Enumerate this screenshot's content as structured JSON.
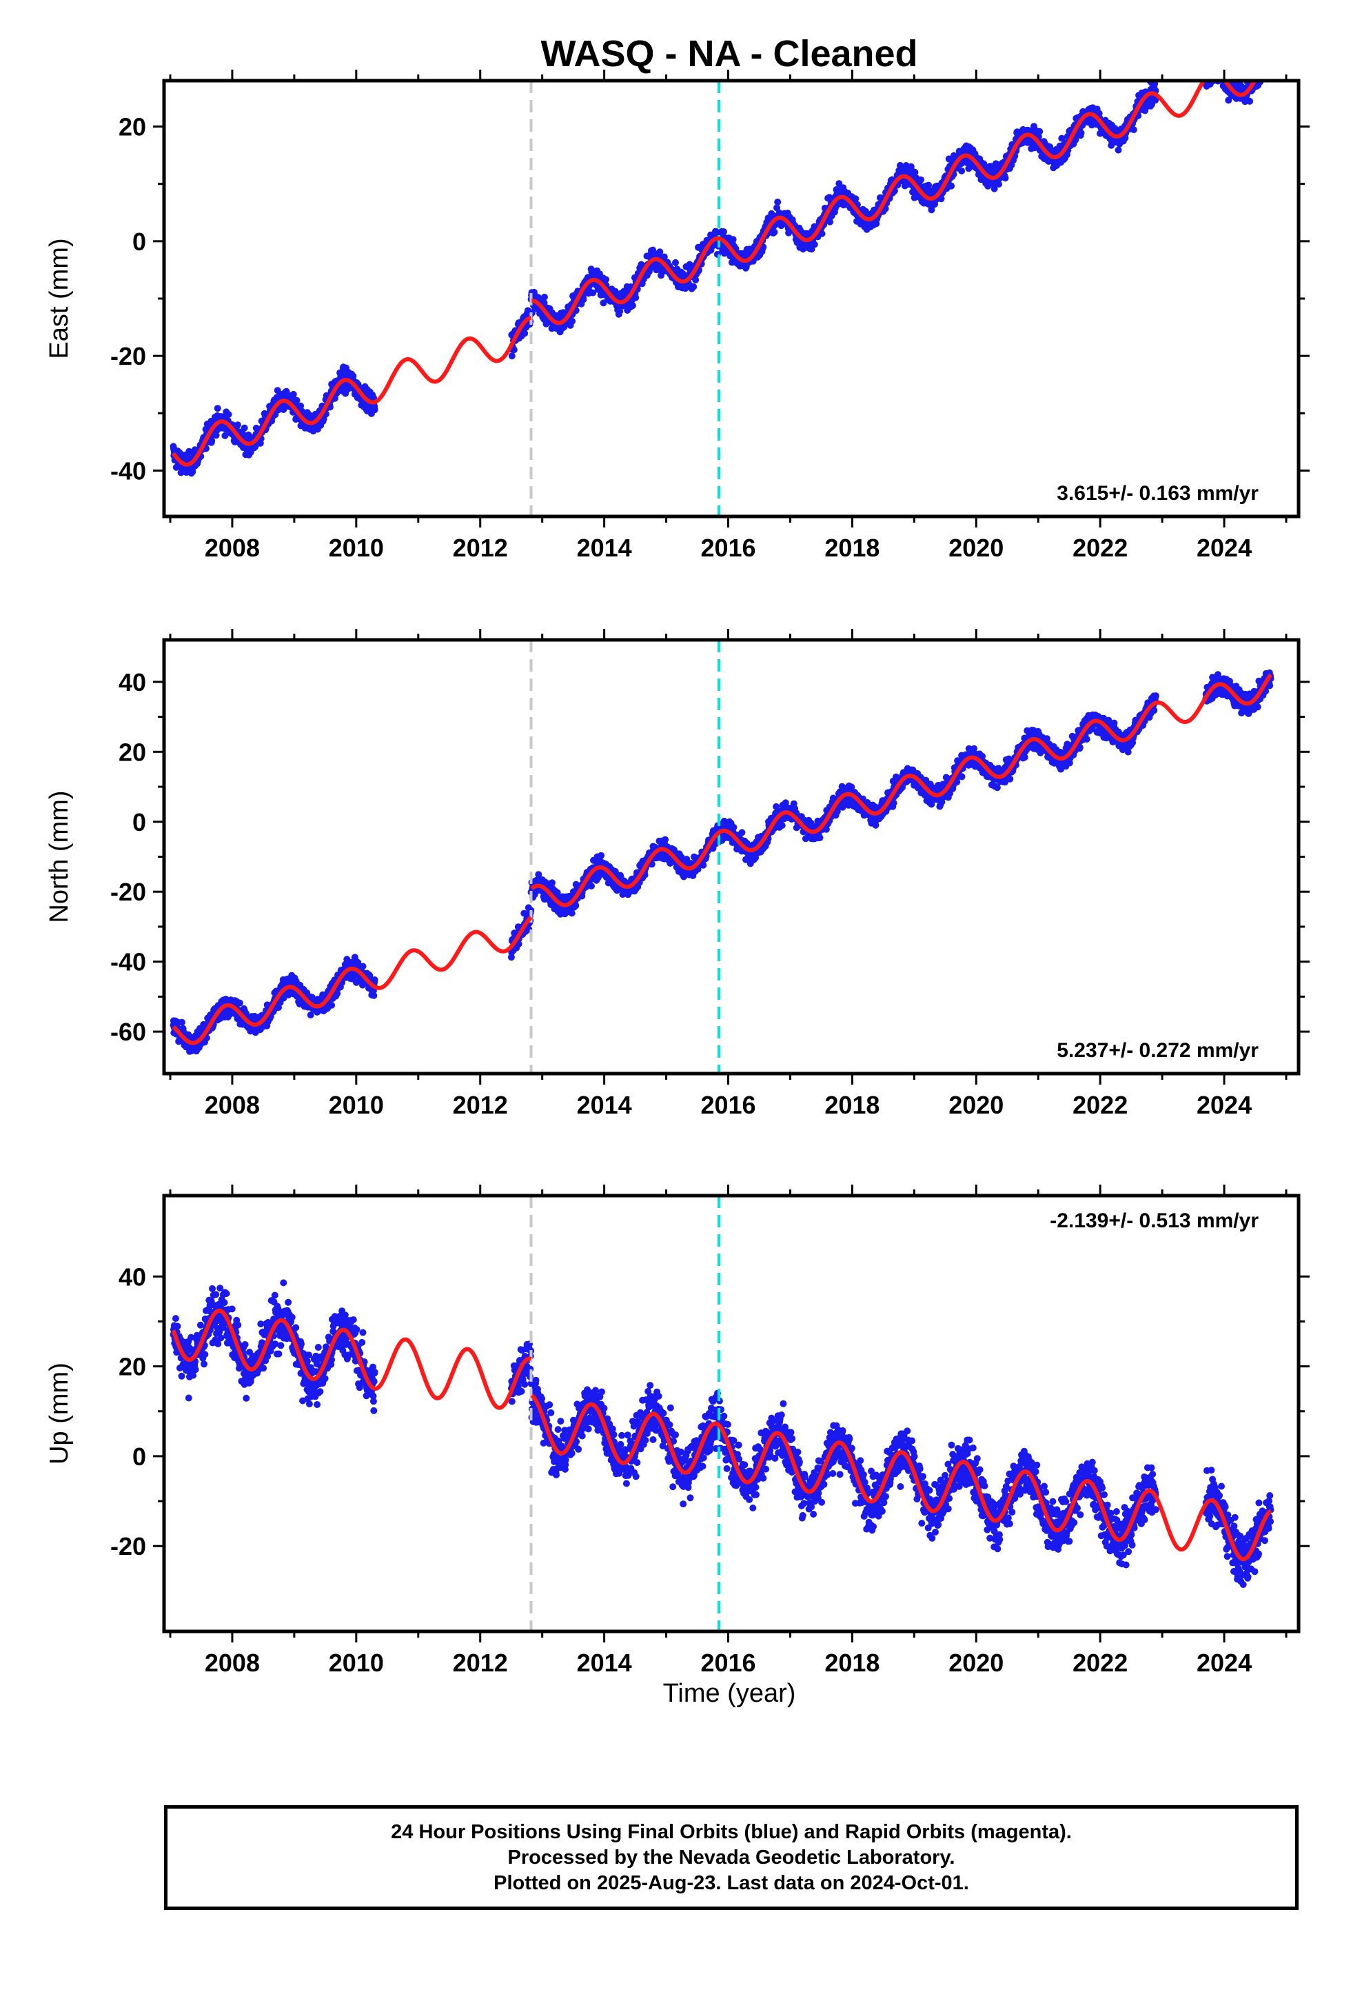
{
  "colors": {
    "observations": "#1a1aee",
    "model": "#ff1a1a",
    "equipment_change": "#c8c8c8",
    "earthquake_line": "#00e5e5",
    "frame": "#000000"
  },
  "chart_data": {
    "type": "scatter",
    "title": "WASQ  - NA - Cleaned",
    "xlabel": "Time (year)",
    "xlim": [
      2006.9,
      2025.2
    ],
    "x_ticks": [
      "2008",
      "2010",
      "2012",
      "2014",
      "2016",
      "2018",
      "2020",
      "2022",
      "2024"
    ],
    "data_start": 2007.05,
    "data_end": 2024.75,
    "gap": [
      2010.3,
      2012.5
    ],
    "gap2": [
      2022.9,
      2023.7
    ],
    "vertical_lines": [
      {
        "x": 2012.82,
        "style": "dashed",
        "color": "gray"
      },
      {
        "x": 2015.85,
        "style": "dashed",
        "color": "cyan"
      }
    ],
    "panels": [
      {
        "name": "east",
        "ylabel": "East (mm)",
        "ylim": [
          -48,
          28
        ],
        "y_ticks": [
          "-40",
          "-20",
          "0",
          "20"
        ],
        "rate_label": "3.615+/- 0.163 mm/yr",
        "rate_position": "bottom-right",
        "model": {
          "y_at_start": -37.0,
          "rate": 3.615,
          "amplitude": 2.8,
          "phase": 0.55,
          "offsets": [
            {
              "x": 2012.82,
              "step": 3.0
            }
          ]
        },
        "scatter": {
          "noise": 1.3
        }
      },
      {
        "name": "north",
        "ylabel": "North (mm)",
        "ylim": [
          -72,
          52
        ],
        "y_ticks": [
          "-60",
          "-40",
          "-20",
          "0",
          "20",
          "40"
        ],
        "rate_label": "5.237+/- 0.272 mm/yr",
        "rate_position": "bottom-right",
        "model": {
          "y_at_start": -61.0,
          "rate": 5.237,
          "amplitude": 4.0,
          "phase": 0.65,
          "offsets": [
            {
              "x": 2012.82,
              "step": 8.0
            }
          ]
        },
        "scatter": {
          "noise": 2.0
        }
      },
      {
        "name": "up",
        "ylabel": "Up (mm)",
        "ylim": [
          -39,
          58
        ],
        "y_ticks": [
          "-20",
          "0",
          "20",
          "40"
        ],
        "rate_label": "-2.139+/- 0.513 mm/yr",
        "rate_position": "top-right",
        "model": {
          "y_at_start": 28.0,
          "rate": -2.139,
          "amplitude": 6.0,
          "phase": 0.55,
          "offsets": [
            {
              "x": 2012.82,
              "step": -8.0
            }
          ]
        },
        "scatter": {
          "noise": 3.8
        }
      }
    ]
  },
  "footer": {
    "line1": "24 Hour Positions Using Final Orbits (blue) and Rapid Orbits (magenta).",
    "line2": "Processed by the Nevada Geodetic Laboratory.",
    "line3": "Plotted on 2025-Aug-23. Last data on 2024-Oct-01."
  }
}
